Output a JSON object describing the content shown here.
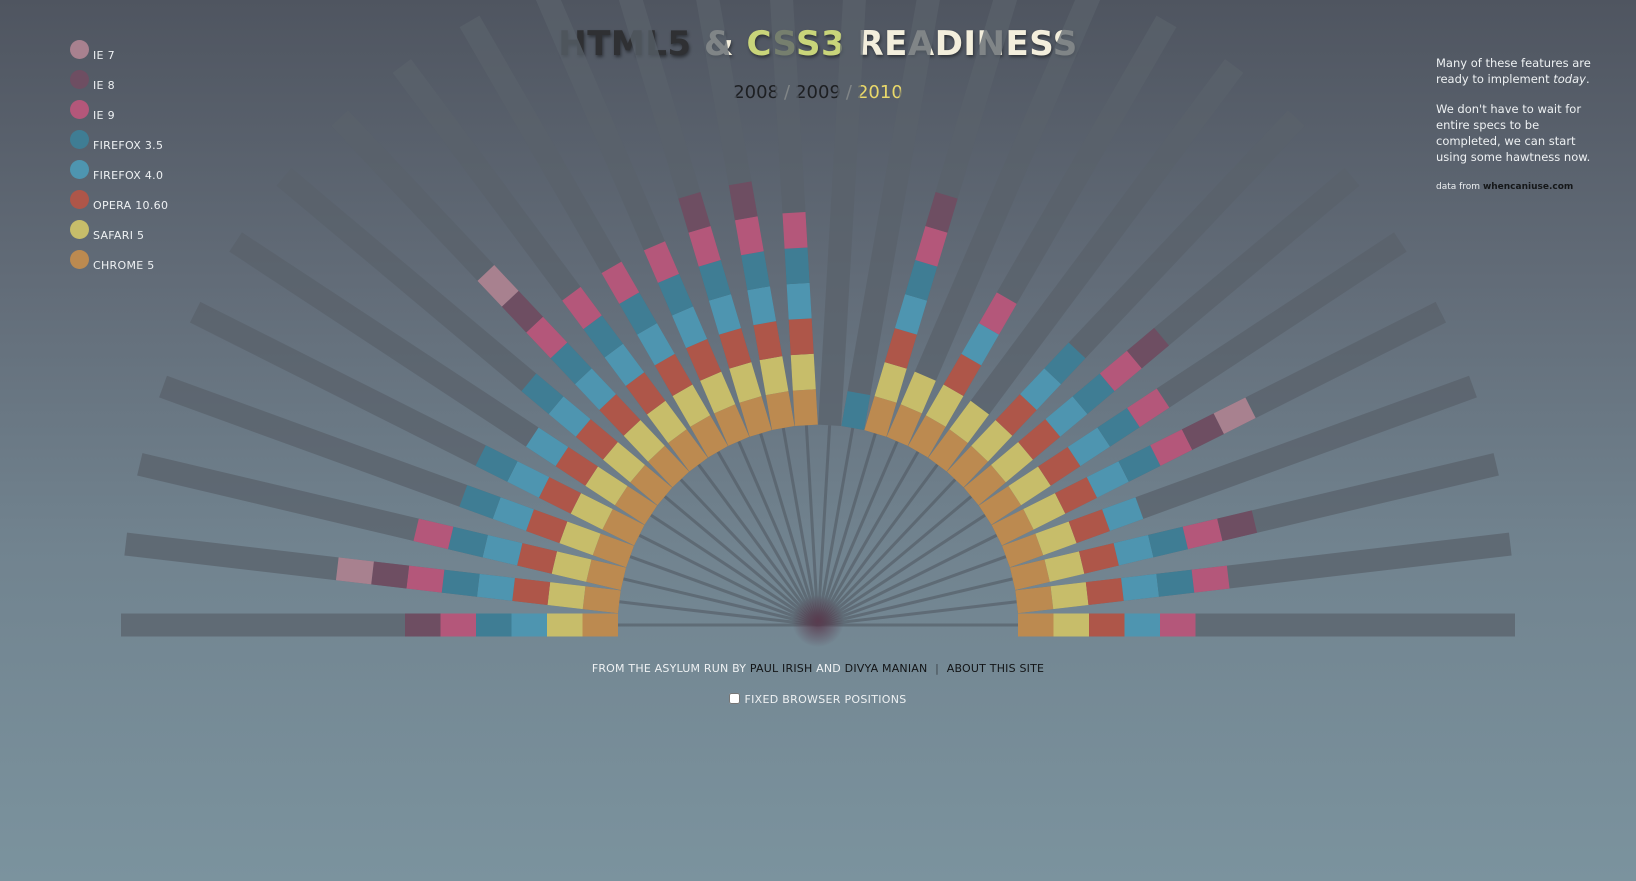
{
  "legend": [
    {
      "label": "IE 7",
      "color": "#a8818f"
    },
    {
      "label": "IE 8",
      "color": "#6e4e62"
    },
    {
      "label": "IE 9",
      "color": "#b4577a"
    },
    {
      "label": "FIREFOX 3.5",
      "color": "#3f7d94"
    },
    {
      "label": "FIREFOX 4.0",
      "color": "#4e95b0"
    },
    {
      "label": "OPERA 10.60",
      "color": "#ae5649"
    },
    {
      "label": "SAFARI 5",
      "color": "#c7bd6a"
    },
    {
      "label": "CHROME 5",
      "color": "#bc8a50"
    }
  ],
  "title": {
    "part1": "HTML5",
    "amp": "&",
    "part2": "CSS3",
    "part3": "READINESS"
  },
  "years": {
    "y1": "2008",
    "y2": "2009",
    "y3": "2010",
    "sep": "/",
    "selected": "2010"
  },
  "sidenote": {
    "p1_before": "Many of these features are ready to implement ",
    "p1_em": "today",
    "p1_after": ".",
    "p2": "We don't have to wait for entire specs to be completed, we can start using some hawtness now.",
    "src_label": "data from",
    "src_link": "whencaniuse.com"
  },
  "footer": {
    "prefix": "FROM THE ASYLUM RUN BY",
    "author1": "PAUL IRISH",
    "and": "AND",
    "author2": "DIVYA MANIAN",
    "sep": "|",
    "about": "ABOUT THIS SITE"
  },
  "toggle": {
    "label": "FIXED BROWSER POSITIONS",
    "checked": false
  },
  "chart_data": {
    "type": "radial-stacked-bar",
    "year": "2010",
    "browser_order": [
      "CHROME 5",
      "SAFARI 5",
      "OPERA 10.60",
      "FIREFOX 4.0",
      "FIREFOX 3.5",
      "IE 9",
      "IE 8",
      "IE 7"
    ],
    "feature_support": [
      [
        "CHROME 5",
        "SAFARI 5",
        "FIREFOX 4.0",
        "FIREFOX 3.5",
        "IE 9",
        "IE 8"
      ],
      [
        "CHROME 5",
        "SAFARI 5",
        "OPERA 10.60",
        "FIREFOX 4.0",
        "FIREFOX 3.5",
        "IE 9",
        "IE 8",
        "IE 7"
      ],
      [
        "CHROME 5",
        "SAFARI 5",
        "OPERA 10.60",
        "FIREFOX 4.0",
        "FIREFOX 3.5",
        "IE 9"
      ],
      [
        "CHROME 5",
        "SAFARI 5",
        "OPERA 10.60",
        "FIREFOX 4.0",
        "FIREFOX 3.5"
      ],
      [
        "CHROME 5",
        "SAFARI 5",
        "OPERA 10.60",
        "FIREFOX 4.0",
        "FIREFOX 3.5"
      ],
      [
        "CHROME 5",
        "SAFARI 5",
        "OPERA 10.60",
        "FIREFOX 4.0"
      ],
      [
        "CHROME 5",
        "SAFARI 5",
        "OPERA 10.60",
        "FIREFOX 4.0",
        "FIREFOX 3.5"
      ],
      [
        "CHROME 5",
        "SAFARI 5",
        "OPERA 10.60",
        "FIREFOX 4.0",
        "FIREFOX 3.5",
        "IE 9",
        "IE 8",
        "IE 7"
      ],
      [
        "CHROME 5",
        "SAFARI 5",
        "OPERA 10.60",
        "FIREFOX 4.0",
        "FIREFOX 3.5",
        "IE 9"
      ],
      [
        "CHROME 5",
        "SAFARI 5",
        "OPERA 10.60",
        "FIREFOX 4.0",
        "FIREFOX 3.5",
        "IE 9"
      ],
      [
        "CHROME 5",
        "SAFARI 5",
        "OPERA 10.60",
        "FIREFOX 4.0",
        "FIREFOX 3.5",
        "IE 9"
      ],
      [
        "CHROME 5",
        "SAFARI 5",
        "OPERA 10.60",
        "FIREFOX 4.0",
        "FIREFOX 3.5",
        "IE 9",
        "IE 8"
      ],
      [
        "CHROME 5",
        "SAFARI 5",
        "OPERA 10.60",
        "FIREFOX 4.0",
        "FIREFOX 3.5",
        "IE 9",
        "IE 8"
      ],
      [
        "CHROME 5",
        "SAFARI 5",
        "OPERA 10.60",
        "FIREFOX 4.0",
        "FIREFOX 3.5",
        "IE 9"
      ],
      [],
      [
        "FIREFOX 3.5"
      ],
      [
        "CHROME 5",
        "SAFARI 5",
        "OPERA 10.60",
        "FIREFOX 4.0",
        "FIREFOX 3.5",
        "IE 9",
        "IE 8"
      ],
      [
        "CHROME 5",
        "SAFARI 5"
      ],
      [
        "CHROME 5",
        "SAFARI 5",
        "OPERA 10.60",
        "FIREFOX 4.0",
        "IE 9"
      ],
      [
        "CHROME 5",
        "SAFARI 5"
      ],
      [
        "CHROME 5",
        "SAFARI 5",
        "OPERA 10.60",
        "FIREFOX 4.0",
        "FIREFOX 3.5"
      ],
      [
        "CHROME 5",
        "SAFARI 5",
        "OPERA 10.60",
        "FIREFOX 4.0",
        "FIREFOX 3.5",
        "IE 9",
        "IE 8"
      ],
      [
        "CHROME 5",
        "SAFARI 5",
        "OPERA 10.60",
        "FIREFOX 4.0",
        "FIREFOX 3.5",
        "IE 9"
      ],
      [
        "CHROME 5",
        "SAFARI 5",
        "OPERA 10.60",
        "FIREFOX 4.0",
        "FIREFOX 3.5",
        "IE 9",
        "IE 8",
        "IE 7"
      ],
      [
        "CHROME 5",
        "SAFARI 5",
        "OPERA 10.60",
        "FIREFOX 4.0"
      ],
      [
        "CHROME 5",
        "SAFARI 5",
        "OPERA 10.60",
        "FIREFOX 4.0",
        "FIREFOX 3.5",
        "IE 9",
        "IE 8"
      ],
      [
        "CHROME 5",
        "SAFARI 5",
        "OPERA 10.60",
        "FIREFOX 4.0",
        "FIREFOX 3.5",
        "IE 9"
      ],
      [
        "CHROME 5",
        "SAFARI 5",
        "OPERA 10.60",
        "FIREFOX 4.0",
        "IE 9"
      ]
    ]
  }
}
